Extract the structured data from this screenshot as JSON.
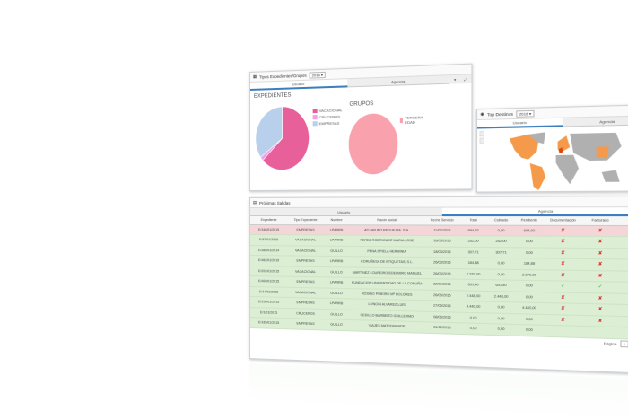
{
  "chart_panel": {
    "title": "Tipos Expedientes/Grupos",
    "year": "2016",
    "tabs": [
      "Usuario",
      "Agencia"
    ]
  },
  "chart_data": [
    {
      "type": "pie",
      "title": "EXPEDIENTES",
      "categories": [
        "VACACIONAL",
        "CRUCEROS",
        "EMPRESAS"
      ],
      "values": [
        63,
        2,
        35
      ],
      "colors": [
        "#e8609a",
        "#f0a0e8",
        "#b8d0ec"
      ]
    },
    {
      "type": "pie",
      "title": "GRUPOS",
      "categories": [
        "TERCERA EDAD"
      ],
      "values": [
        100
      ],
      "colors": [
        "#f9a2ad"
      ]
    }
  ],
  "map_panel": {
    "title": "Top Destinos",
    "year": "2016",
    "tabs": [
      "Usuario",
      "Agencia"
    ],
    "highlight_color": "#f59a4a",
    "base_color": "#b0b0b0"
  },
  "table_panel": {
    "title": "Próximas Salidas",
    "tabs": [
      "Usuario",
      "Agencia"
    ],
    "columns": [
      "Expediente",
      "Tipo Expediente",
      "Nombre",
      "Razón social",
      "Fecha Servicio",
      "Total",
      "Cobrado",
      "Pendiente",
      "Documentación",
      "Facturado",
      "Cobrado"
    ],
    "rows": [
      {
        "status": "r",
        "cells": [
          "E/168/01/2015",
          "EMPRESAS",
          "LPARRB",
          "AD GRUPO REGUEIRA, S.A.",
          "11/02/2015",
          "694,92",
          "0,00",
          "694,92"
        ],
        "flags": [
          "x",
          "x",
          "x"
        ]
      },
      {
        "status": "g",
        "cells": [
          "E/87/01/2015",
          "VACACIONAL",
          "LPARRB",
          "PEREZ RODRIGUEZ MARIA JOSE",
          "16/03/2015",
          "262,00",
          "262,00",
          "0,00"
        ],
        "flags": [
          "x",
          "x",
          "ok"
        ]
      },
      {
        "status": "g",
        "cells": [
          "E/385/01/2014",
          "VACACIONAL",
          "GUILLO",
          "PENA SPIELA HERMINIA",
          "18/03/2015",
          "307,71",
          "307,71",
          "0,00"
        ],
        "flags": [
          "x",
          "x",
          "ok"
        ]
      },
      {
        "status": "g",
        "cells": [
          "E/462/01/2015",
          "EMPRESAS",
          "LPARRB",
          "CORUÑESA DE ETIQUETAS, S.L.",
          "26/03/2015",
          "184,88",
          "0,00",
          "184,88"
        ],
        "flags": [
          "x",
          "x",
          "x"
        ]
      },
      {
        "status": "g",
        "cells": [
          "E/202/01/2015",
          "VACACIONAL",
          "GUILLO",
          "MARTINEZ LOUREIRO EDELMIRO MANUEL",
          "26/03/2015",
          "2.370,00",
          "0,00",
          "2.370,00"
        ],
        "flags": [
          "x",
          "x",
          "x"
        ]
      },
      {
        "status": "g",
        "cells": [
          "E/408/01/2015",
          "EMPRESAS",
          "LPARRB",
          "FUNDACION UNIVERSIDAD DE LA CORUÑA",
          "22/04/2015",
          "651,40",
          "651,40",
          "0,00"
        ],
        "flags": [
          "ok",
          "ok",
          "ok"
        ]
      },
      {
        "status": "g",
        "cells": [
          "E/14/01/2015",
          "VACACIONAL",
          "GUILLO",
          "ROSINO PIÑEIRO Mª DOLORES",
          "26/05/2015",
          "2.448,00",
          "2.448,00",
          "0,00"
        ],
        "flags": [
          "x",
          "x",
          "x"
        ]
      },
      {
        "status": "g",
        "cells": [
          "E/256/01/2015",
          "EMPRESAS",
          "LPARRB",
          "LONGIN ALVAREZ LUIS",
          "27/05/2015",
          "4.440,00",
          "0,00",
          "4.440,00"
        ],
        "flags": [
          "x",
          "x",
          "ok"
        ]
      },
      {
        "status": "g",
        "cells": [
          "E/1/01/2015",
          "CRUCEROS",
          "GUILLO",
          "CEDILLO BARBEITO GUILLERMO",
          "08/06/2015",
          "0,00",
          "0,00",
          "0,00"
        ],
        "flags": [
          "x",
          "x",
          "ok"
        ]
      },
      {
        "status": "g",
        "cells": [
          "E/165/01/2015",
          "EMPRESAS",
          "GUILLO",
          "VIAJES MATOGRANDE",
          "31/12/2015",
          "0,00",
          "0,00",
          "0,00"
        ],
        "flags": [
          "",
          "",
          ""
        ]
      }
    ],
    "footer": {
      "page_label": "Página",
      "page": "1"
    }
  }
}
